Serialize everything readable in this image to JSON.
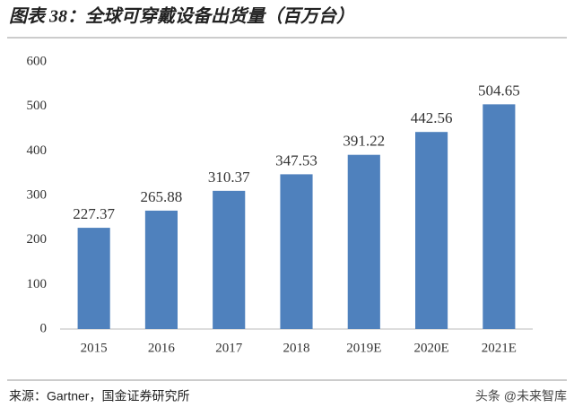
{
  "chart_data": {
    "type": "bar",
    "title": "图表 38：全球可穿戴设备出货量（百万台）",
    "categories": [
      "2015",
      "2016",
      "2017",
      "2018",
      "2019E",
      "2020E",
      "2021E"
    ],
    "values": [
      227.37,
      265.88,
      310.37,
      347.53,
      391.22,
      442.56,
      504.65
    ],
    "color": "#4f81bd",
    "ylim": [
      0,
      600
    ],
    "yticks": [
      0,
      100,
      200,
      300,
      400,
      500,
      600
    ],
    "grid": false,
    "source": "来源：Gartner，国金证券研究所",
    "watermark": "头条 @未来智库"
  }
}
